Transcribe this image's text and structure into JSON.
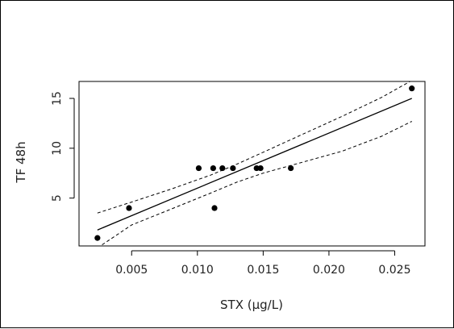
{
  "chart_data": {
    "type": "scatter",
    "title": "",
    "xlabel": "STX (µg/L)",
    "ylabel": "TF 48h",
    "xlim": [
      0.001,
      0.0273
    ],
    "ylim": [
      0.2,
      16.7
    ],
    "x_ticks": [
      0.005,
      0.01,
      0.015,
      0.02,
      0.025
    ],
    "x_tick_labels": [
      "0.005",
      "0.010",
      "0.015",
      "0.020",
      "0.025"
    ],
    "y_ticks": [
      5,
      10,
      15
    ],
    "y_tick_labels": [
      "5",
      "10",
      "15"
    ],
    "grid": false,
    "legend": "none",
    "points": [
      {
        "x": 0.0024,
        "y": 1
      },
      {
        "x": 0.0048,
        "y": 4
      },
      {
        "x": 0.0101,
        "y": 8
      },
      {
        "x": 0.0112,
        "y": 8
      },
      {
        "x": 0.0113,
        "y": 4
      },
      {
        "x": 0.0119,
        "y": 8
      },
      {
        "x": 0.0127,
        "y": 8
      },
      {
        "x": 0.0145,
        "y": 8
      },
      {
        "x": 0.0148,
        "y": 8
      },
      {
        "x": 0.0171,
        "y": 8
      },
      {
        "x": 0.0263,
        "y": 16
      }
    ],
    "regression_line": {
      "x": [
        0.0024,
        0.0263
      ],
      "y": [
        1.8,
        15.0
      ]
    },
    "confidence_band_upper": {
      "x": [
        0.0024,
        0.005,
        0.008,
        0.011,
        0.013,
        0.015,
        0.018,
        0.021,
        0.024,
        0.0263
      ],
      "y": [
        3.5,
        4.6,
        5.9,
        7.3,
        8.4,
        9.6,
        11.4,
        13.2,
        15.1,
        16.8
      ]
    },
    "confidence_band_lower": {
      "x": [
        0.0024,
        0.005,
        0.008,
        0.011,
        0.013,
        0.015,
        0.018,
        0.021,
        0.024,
        0.0263
      ],
      "y": [
        0.0,
        2.3,
        3.9,
        5.5,
        6.6,
        7.5,
        8.6,
        9.7,
        11.2,
        12.7
      ]
    },
    "colors": {
      "points": "#000000",
      "lines": "#000000",
      "axes": "#000000"
    }
  }
}
